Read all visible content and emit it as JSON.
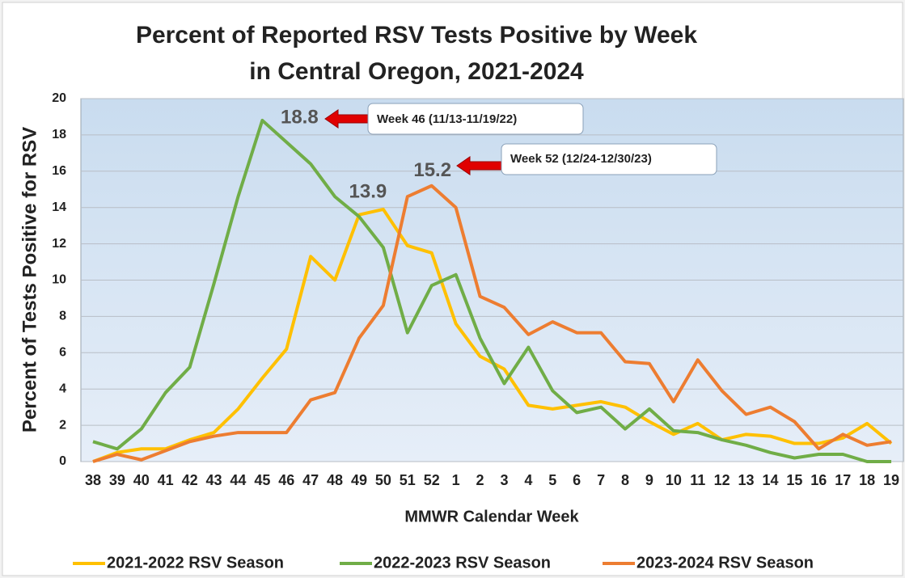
{
  "chart_data": {
    "type": "line",
    "title": [
      "Percent of Reported RSV Tests Positive by Week",
      "in Central Oregon, 2021-2024"
    ],
    "x_label": "MMWR Calendar Week",
    "y_label": "Percent of Tests Positive for RSV",
    "categories": [
      "38",
      "39",
      "40",
      "41",
      "42",
      "43",
      "44",
      "45",
      "46",
      "47",
      "48",
      "49",
      "50",
      "51",
      "52",
      "1",
      "2",
      "3",
      "4",
      "5",
      "6",
      "7",
      "8",
      "9",
      "10",
      "11",
      "12",
      "13",
      "14",
      "15",
      "16",
      "17",
      "18",
      "19"
    ],
    "ylim": [
      0,
      20
    ],
    "yticks": [
      0,
      2,
      4,
      6,
      8,
      10,
      12,
      14,
      16,
      18,
      20
    ],
    "grid": true,
    "legend": "bottom",
    "series": [
      {
        "name": "2021-2022 RSV Season",
        "color": "#ffc000",
        "values": [
          0,
          0.5,
          0.7,
          0.7,
          1.2,
          1.6,
          2.9,
          4.6,
          6.2,
          11.3,
          10.0,
          13.6,
          13.9,
          11.9,
          11.5,
          7.6,
          5.8,
          5.1,
          3.1,
          2.9,
          3.1,
          3.3,
          3.0,
          2.2,
          1.5,
          2.1,
          1.2,
          1.5,
          1.4,
          1.0,
          1.0,
          1.3,
          2.1,
          1.0
        ]
      },
      {
        "name": "2022-2023 RSV Season",
        "color": "#70ad47",
        "values": [
          1.1,
          0.7,
          1.8,
          3.8,
          5.2,
          9.8,
          14.6,
          18.8,
          17.6,
          16.4,
          14.6,
          13.5,
          11.8,
          7.1,
          9.7,
          10.3,
          6.8,
          4.3,
          6.3,
          3.9,
          2.7,
          3.0,
          1.8,
          2.9,
          1.7,
          1.6,
          1.2,
          0.9,
          0.5,
          0.2,
          0.4,
          0.4,
          0,
          0
        ]
      },
      {
        "name": "2023-2024 RSV Season",
        "color": "#ed7d31",
        "values": [
          0,
          0.4,
          0.1,
          0.6,
          1.1,
          1.4,
          1.6,
          1.6,
          1.6,
          3.4,
          3.8,
          6.8,
          8.6,
          14.6,
          15.2,
          14.0,
          9.1,
          8.5,
          7.0,
          7.7,
          7.1,
          7.1,
          5.5,
          5.4,
          3.3,
          5.6,
          3.9,
          2.6,
          3.0,
          2.2,
          0.7,
          1.5,
          0.9,
          1.1
        ]
      }
    ],
    "annotations": [
      "Week 46 (11/13-11/19/22)",
      "Week 52 (12/24-12/30/23)"
    ]
  }
}
